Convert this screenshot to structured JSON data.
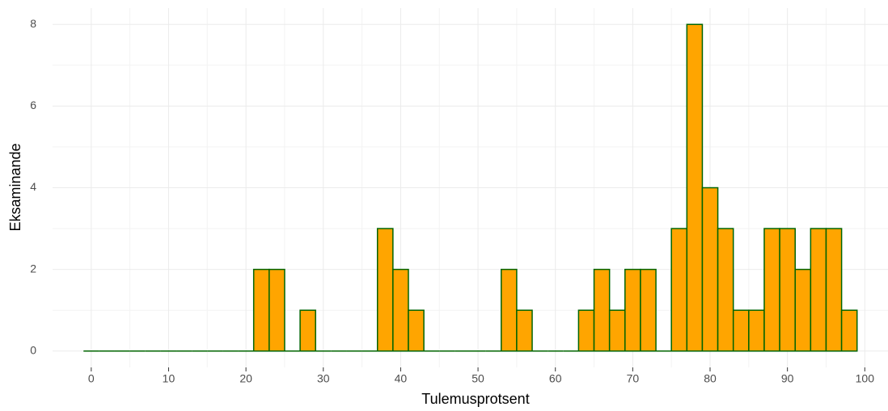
{
  "chart_data": {
    "type": "histogram",
    "xlabel": "Tulemusprotsent",
    "ylabel": "Eksaminande",
    "bins": [
      -1,
      1,
      3,
      5,
      7,
      9,
      11,
      13,
      15,
      17,
      19,
      21,
      23,
      25,
      27,
      29,
      31,
      33,
      35,
      37,
      39,
      41,
      43,
      45,
      47,
      49,
      51,
      53,
      55,
      57,
      59,
      61,
      63,
      65,
      67,
      69,
      71,
      73,
      75,
      77,
      79,
      81,
      83,
      85,
      87,
      89,
      91,
      93,
      95,
      97,
      99
    ],
    "values": [
      0,
      0,
      0,
      0,
      0,
      0,
      0,
      0,
      0,
      0,
      0,
      2,
      2,
      0,
      1,
      0,
      0,
      0,
      0,
      3,
      2,
      1,
      0,
      0,
      0,
      0,
      0,
      2,
      1,
      0,
      0,
      0,
      1,
      2,
      1,
      2,
      2,
      0,
      3,
      8,
      4,
      3,
      1,
      1,
      3,
      3,
      2,
      3,
      3,
      1
    ],
    "color": "#ffa500",
    "edge_color": "#006400",
    "xlim": [
      -5,
      103
    ],
    "ylim": [
      -0.4,
      8.4
    ],
    "xticks": [
      0,
      10,
      20,
      30,
      40,
      50,
      60,
      70,
      80,
      90,
      100
    ],
    "yticks": [
      0,
      2,
      4,
      6,
      8
    ],
    "grid": true
  }
}
